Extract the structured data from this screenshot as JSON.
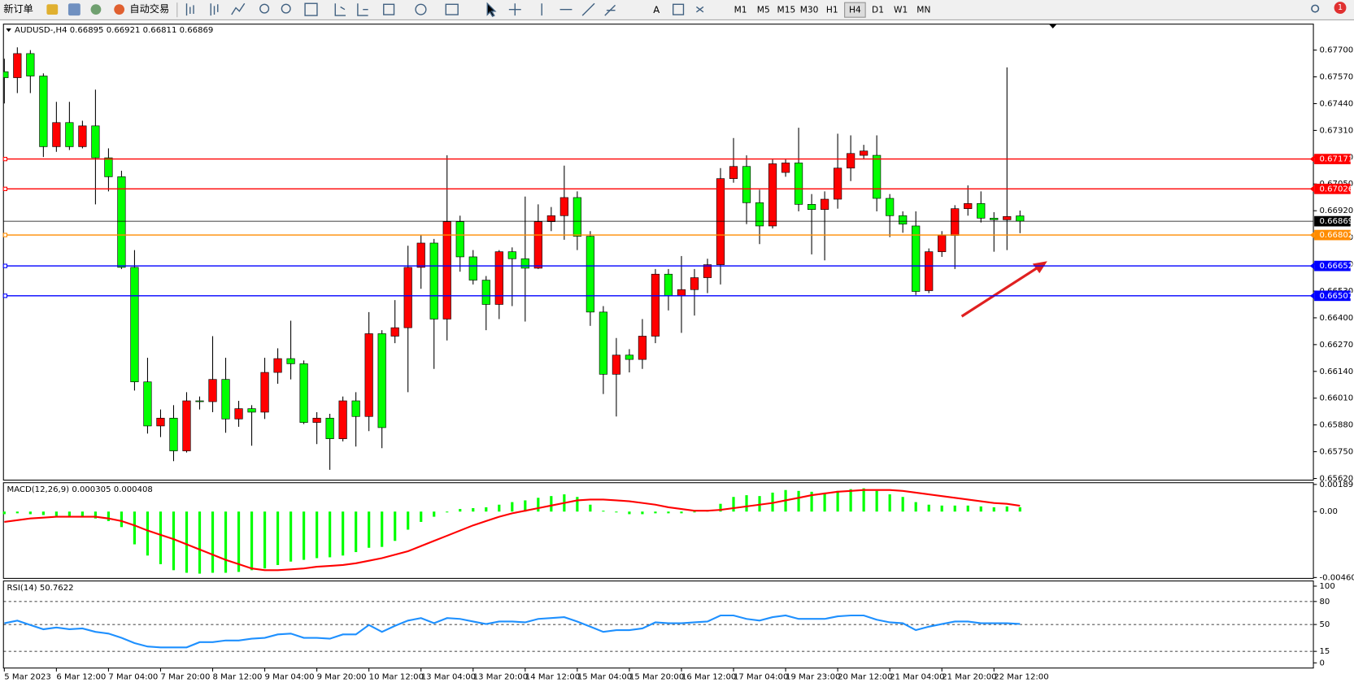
{
  "toolbar": {
    "new_order": "新订单",
    "auto_trading": "自动交易",
    "timeframes": [
      "M1",
      "M5",
      "M15",
      "M30",
      "H1",
      "H4",
      "D1",
      "W1",
      "MN"
    ],
    "active_timeframe": "H4",
    "notifications": 1
  },
  "chart_data": [
    {
      "type": "candlestick",
      "symbol": "AUDUSD-,H4",
      "up_color": "#ff0000",
      "down_color": "#00ff00",
      "bid_color": "#000000",
      "categories": [
        "5 Mar 2023",
        null,
        null,
        null,
        "6 Mar 12:00",
        null,
        null,
        null,
        "7 Mar 04:00",
        null,
        null,
        null,
        "7 Mar 20:00",
        null,
        null,
        null,
        "8 Mar 12:00",
        null,
        null,
        null,
        "9 Mar 04:00",
        null,
        null,
        null,
        "9 Mar 20:00",
        null,
        null,
        null,
        "10 Mar 12:00",
        null,
        null,
        null,
        "13 Mar 04:00",
        null,
        null,
        null,
        "13 Mar 20:00",
        null,
        null,
        null,
        "14 Mar 12:00",
        null,
        null,
        null,
        "15 Mar 04:00",
        null,
        null,
        null,
        "15 Mar 20:00",
        null,
        null,
        null,
        "16 Mar 12:00",
        null,
        null,
        null,
        "17 Mar 04:00",
        null,
        null,
        null,
        "19 Mar 23:00",
        null,
        null,
        null,
        "20 Mar 12:00",
        null,
        null,
        null,
        "21 Mar 04:00",
        null,
        null,
        null,
        "21 Mar 20:00",
        null,
        null,
        null,
        "22 Mar 12:00",
        null,
        null
      ],
      "open": [
        0.67595,
        0.67566,
        0.67683,
        0.67574,
        0.67231,
        0.67348,
        0.67231,
        0.67332,
        0.67177,
        0.67085,
        0.66645,
        0.66089,
        0.65875,
        0.65913,
        0.65754,
        0.65997,
        0.65993,
        0.66101,
        0.65909,
        0.65959,
        0.65942,
        0.66135,
        0.66202,
        0.66177,
        0.65892,
        0.65913,
        0.65813,
        0.65997,
        0.65921,
        0.66323,
        0.66311,
        0.66352,
        0.66645,
        0.66763,
        0.66394,
        0.66867,
        0.66696,
        0.66583,
        0.66465,
        0.66721,
        0.66687,
        0.66641,
        0.66867,
        0.66896,
        0.66984,
        0.66796,
        0.66428,
        0.66126,
        0.66219,
        0.66198,
        0.66311,
        0.66612,
        0.66507,
        0.66537,
        0.66595,
        0.66658,
        0.67076,
        0.67135,
        0.66959,
        0.66846,
        0.67106,
        0.67152,
        0.66951,
        0.66926,
        0.66976,
        0.67127,
        0.67189,
        0.67189,
        0.6698,
        0.66896,
        0.66846,
        0.66532,
        0.66721,
        0.668,
        0.6693,
        0.66955,
        0.66884,
        0.66876,
        0.66895
      ],
      "high": [
        0.67658,
        0.67713,
        0.677,
        0.67587,
        0.67449,
        0.67449,
        0.67357,
        0.67508,
        0.67223,
        0.67114,
        0.66729,
        0.66206,
        0.65955,
        0.65976,
        0.66039,
        0.66018,
        0.66311,
        0.66206,
        0.65997,
        0.65976,
        0.66206,
        0.66252,
        0.66386,
        0.66193,
        0.65942,
        0.65934,
        0.66018,
        0.66039,
        0.66428,
        0.6634,
        0.66486,
        0.6675,
        0.66804,
        0.66783,
        0.67189,
        0.66896,
        0.66729,
        0.66603,
        0.66729,
        0.66742,
        0.66989,
        0.66951,
        0.66938,
        0.67139,
        0.67014,
        0.66821,
        0.66457,
        0.66302,
        0.66248,
        0.66394,
        0.66637,
        0.66637,
        0.667,
        0.66637,
        0.66687,
        0.67127,
        0.67273,
        0.67189,
        0.67022,
        0.67169,
        0.67169,
        0.67323,
        0.67001,
        0.67014,
        0.67294,
        0.67286,
        0.6724,
        0.67286,
        0.67001,
        0.66917,
        0.66917,
        0.66737,
        0.66821,
        0.66947,
        0.67043,
        0.67014,
        0.66913,
        0.67616,
        0.66921
      ],
      "low": [
        0.67441,
        0.67491,
        0.67491,
        0.67181,
        0.67206,
        0.67215,
        0.67223,
        0.66951,
        0.67014,
        0.66637,
        0.66047,
        0.65838,
        0.65821,
        0.65704,
        0.65746,
        0.65955,
        0.65942,
        0.65842,
        0.65871,
        0.65779,
        0.65909,
        0.6608,
        0.66101,
        0.65884,
        0.65787,
        0.65662,
        0.658,
        0.65775,
        0.6585,
        0.65767,
        0.66277,
        0.66039,
        0.66541,
        0.66152,
        0.6629,
        0.66624,
        0.66562,
        0.6634,
        0.66394,
        0.66457,
        0.66382,
        0.66637,
        0.66821,
        0.66779,
        0.66729,
        0.66361,
        0.6603,
        0.65921,
        0.66135,
        0.66152,
        0.66277,
        0.66436,
        0.66327,
        0.66411,
        0.6652,
        0.66562,
        0.67056,
        0.66855,
        0.66758,
        0.66834,
        0.67085,
        0.66917,
        0.66708,
        0.66679,
        0.6693,
        0.67064,
        0.67169,
        0.66917,
        0.66792,
        0.66813,
        0.66511,
        0.6652,
        0.66696,
        0.66637,
        0.66896,
        0.66863,
        0.66721,
        0.66729,
        0.66811
      ],
      "close": [
        0.67566,
        0.67683,
        0.67574,
        0.67231,
        0.67348,
        0.67231,
        0.67332,
        0.67177,
        0.67085,
        0.66645,
        0.66089,
        0.65875,
        0.65913,
        0.65754,
        0.65997,
        0.65993,
        0.66101,
        0.65909,
        0.65959,
        0.65942,
        0.66135,
        0.66202,
        0.66177,
        0.65892,
        0.65913,
        0.65813,
        0.65997,
        0.65921,
        0.66323,
        0.65867,
        0.66352,
        0.66645,
        0.66763,
        0.66394,
        0.66867,
        0.66696,
        0.66583,
        0.66465,
        0.66721,
        0.66687,
        0.66641,
        0.66867,
        0.66896,
        0.66984,
        0.66796,
        0.66428,
        0.66126,
        0.66219,
        0.66198,
        0.66311,
        0.66612,
        0.66507,
        0.66537,
        0.66595,
        0.66658,
        0.67076,
        0.67135,
        0.66959,
        0.66846,
        0.67148,
        0.67152,
        0.66951,
        0.66926,
        0.66976,
        0.67127,
        0.67198,
        0.6721,
        0.6698,
        0.66896,
        0.66855,
        0.66528,
        0.66721,
        0.668,
        0.6693,
        0.66955,
        0.66884,
        0.66876,
        0.66892,
        0.66869
      ],
      "ylim": [
        0.65612,
        0.67826
      ],
      "yticks": [
        {
          "value": 0.677,
          "label": "0.67700"
        },
        {
          "value": 0.6757,
          "label": "0.67570"
        },
        {
          "value": 0.6744,
          "label": "0.67440"
        },
        {
          "value": 0.6731,
          "label": "0.67310"
        },
        {
          "value": 0.6718,
          "label": "0.67180"
        },
        {
          "value": 0.6705,
          "label": "0.67050"
        },
        {
          "value": 0.6692,
          "label": "0.66920"
        },
        {
          "value": 0.6679,
          "label": "0.66790"
        },
        {
          "value": 0.6666,
          "label": "0.66660"
        },
        {
          "value": 0.6653,
          "label": "0.66530"
        },
        {
          "value": 0.664,
          "label": "0.66400"
        },
        {
          "value": 0.6627,
          "label": "0.66270"
        },
        {
          "value": 0.6614,
          "label": "0.66140"
        },
        {
          "value": 0.6601,
          "label": "0.66010"
        },
        {
          "value": 0.6588,
          "label": "0.65880"
        },
        {
          "value": 0.6575,
          "label": "0.65750"
        },
        {
          "value": 0.6562,
          "label": "0.65620"
        }
      ],
      "hlines": [
        {
          "value": 0.67171,
          "color": "#ff0000"
        },
        {
          "value": 0.67026,
          "color": "#ff0000"
        },
        {
          "value": 0.66802,
          "color": "#ff8c00"
        },
        {
          "value": 0.66652,
          "color": "#0000ff"
        },
        {
          "value": 0.66507,
          "color": "#0000ff"
        }
      ]
    },
    {
      "type": "macd",
      "title": "MACD(12,26,9)",
      "series": [
        {
          "style": "histogram",
          "color": "#00ff00",
          "values": [
            -0.000181,
            -0.00012,
            -0.000181,
            -0.000241,
            -0.000301,
            -0.000301,
            -0.000361,
            -0.000482,
            -0.000662,
            -0.001084,
            -0.002288,
            -0.00307,
            -0.003672,
            -0.004094,
            -0.004274,
            -0.004334,
            -0.004274,
            -0.004274,
            -0.004214,
            -0.004094,
            -0.003973,
            -0.003732,
            -0.003492,
            -0.003371,
            -0.003251,
            -0.003191,
            -0.00307,
            -0.002829,
            -0.002528,
            -0.002468,
            -0.002047,
            -0.001264,
            -0.000722,
            -0.000361,
            -6e-05,
            0.000181,
            0.000241,
            0.000301,
            0.000482,
            0.000662,
            0.000783,
            0.000963,
            0.001084,
            0.001204,
            0.001023,
            0.000482,
            6e-05,
            -6e-05,
            -0.000181,
            -0.000181,
            -0.00012,
            -0.00012,
            -0.00012,
            -6e-05,
            6e-05,
            0.000542,
            0.001023,
            0.001144,
            0.001084,
            0.001324,
            0.001505,
            0.001445,
            0.001385,
            0.001324,
            0.001445,
            0.001565,
            0.001625,
            0.001445,
            0.001204,
            0.001023,
            0.000662,
            0.000482,
            0.000421,
            0.000421,
            0.000421,
            0.000361,
            0.000301,
            0.000361,
            0.000305
          ]
        },
        {
          "style": "line",
          "color": "#ff0000",
          "values": [
            -0.000722,
            -0.000602,
            -0.000482,
            -0.000421,
            -0.000361,
            -0.000361,
            -0.000361,
            -0.000361,
            -0.000482,
            -0.000662,
            -0.000963,
            -0.001324,
            -0.001625,
            -0.001926,
            -0.002288,
            -0.002649,
            -0.00301,
            -0.003371,
            -0.003672,
            -0.003973,
            -0.004094,
            -0.004094,
            -0.004033,
            -0.003973,
            -0.003853,
            -0.003793,
            -0.003732,
            -0.003612,
            -0.003431,
            -0.003251,
            -0.00301,
            -0.002769,
            -0.002408,
            -0.002047,
            -0.001686,
            -0.001324,
            -0.000963,
            -0.000662,
            -0.000361,
            -0.00012,
            6e-05,
            0.000241,
            0.000421,
            0.000602,
            0.000783,
            0.000843,
            0.000843,
            0.000783,
            0.000722,
            0.000602,
            0.000482,
            0.000301,
            0.000181,
            6e-05,
            6e-05,
            0.00012,
            0.000241,
            0.000361,
            0.000482,
            0.000602,
            0.000783,
            0.000963,
            0.001144,
            0.001264,
            0.001385,
            0.001445,
            0.001505,
            0.001505,
            0.001505,
            0.001445,
            0.001324,
            0.001204,
            0.001084,
            0.000963,
            0.000843,
            0.000722,
            0.000602,
            0.000542,
            0.000408
          ]
        }
      ],
      "ylim": [
        -0.004606,
        0.001896
      ],
      "yticks": [
        0.001896,
        {
          "value": 0,
          "label": "0.00"
        },
        -0.004606
      ]
    },
    {
      "type": "rsi",
      "title": "RSI(14)",
      "series": [
        {
          "color": "#1e90ff",
          "values": [
            51.7,
            55.1,
            49.4,
            43.8,
            46.1,
            43.8,
            44.9,
            40.4,
            38.2,
            32.6,
            25.8,
            21.3,
            20.2,
            20.2,
            20.2,
            27.0,
            27.0,
            29.2,
            29.2,
            31.5,
            32.6,
            37.1,
            38.2,
            32.6,
            32.6,
            31.5,
            37.1,
            37.1,
            49.4,
            40.4,
            48.3,
            55.1,
            58.4,
            51.7,
            58.4,
            57.3,
            53.9,
            50.6,
            53.9,
            53.9,
            52.8,
            57.3,
            58.4,
            59.6,
            53.9,
            47.2,
            40.4,
            42.7,
            42.7,
            44.9,
            52.8,
            51.7,
            51.7,
            52.8,
            53.9,
            61.8,
            61.8,
            57.3,
            55.1,
            59.6,
            61.8,
            57.3,
            57.3,
            57.3,
            60.7,
            61.8,
            61.8,
            56.2,
            52.8,
            51.7,
            42.7,
            47.2,
            50.6,
            53.9,
            53.9,
            51.7,
            51.7,
            51.7,
            50.7622
          ]
        }
      ],
      "ylim": [
        0,
        100
      ],
      "yticks": [
        100,
        80,
        50,
        15,
        0
      ]
    }
  ]
}
